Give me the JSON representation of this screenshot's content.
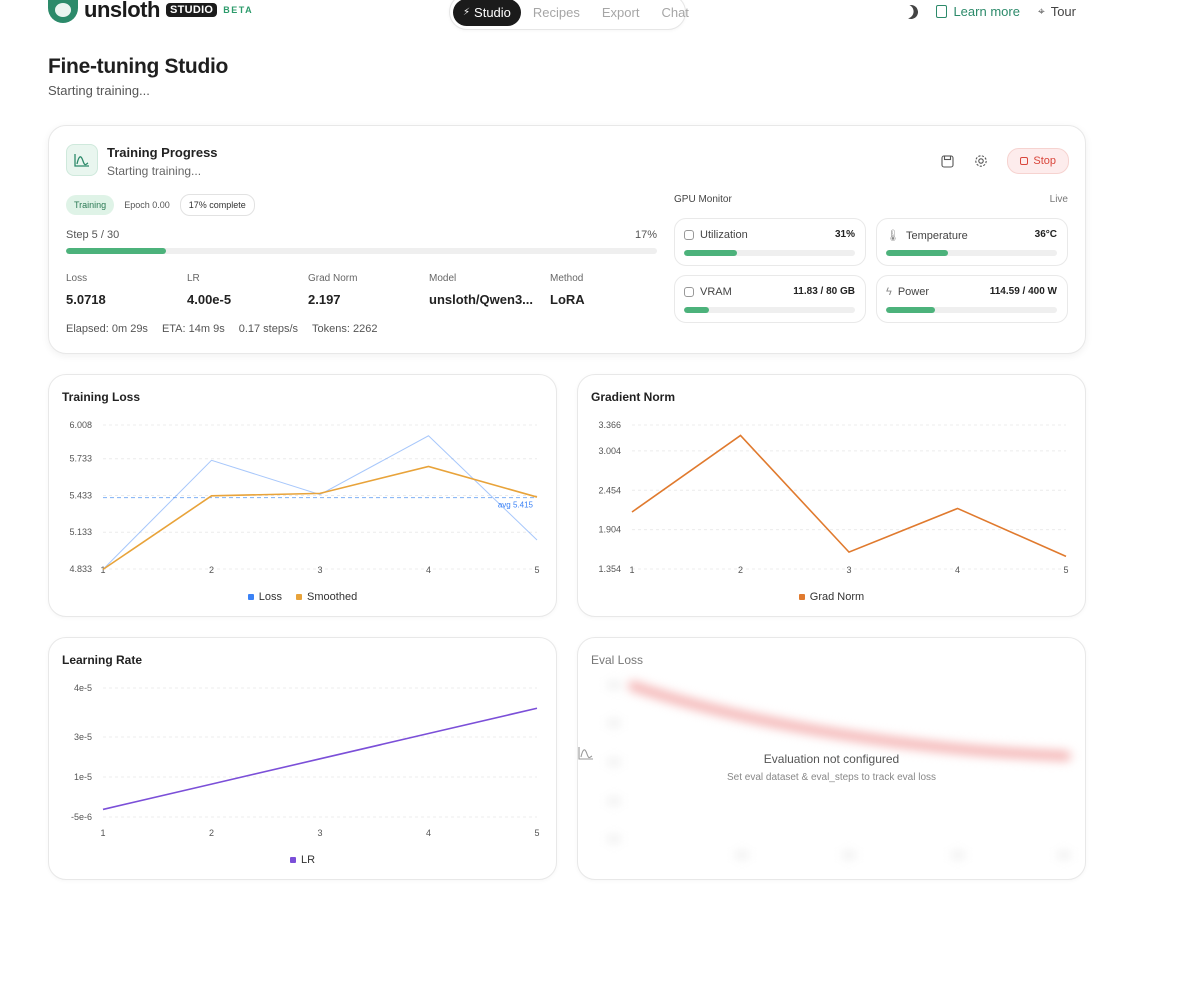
{
  "brand": {
    "name": "unsloth",
    "studio": "STUDIO",
    "beta": "BETA"
  },
  "nav": {
    "tabs": [
      {
        "label": "Studio"
      },
      {
        "label": "Recipes"
      },
      {
        "label": "Export"
      },
      {
        "label": "Chat"
      }
    ],
    "active": "Studio"
  },
  "topright": {
    "learn_more": "Learn more",
    "tour": "Tour"
  },
  "header": {
    "title": "Fine-tuning Studio",
    "subtitle": "Starting training..."
  },
  "progress": {
    "title": "Training Progress",
    "subtitle": "Starting training...",
    "stop_label": "Stop",
    "badges": {
      "status": "Training",
      "epoch": "Epoch 0.00",
      "complete": "17% complete"
    },
    "step_label": "Step 5 / 30",
    "percent_label": "17%",
    "percent": 17,
    "metrics": [
      {
        "label": "Loss",
        "value": "5.0718"
      },
      {
        "label": "LR",
        "value": "4.00e-5"
      },
      {
        "label": "Grad Norm",
        "value": "2.197"
      },
      {
        "label": "Model",
        "value": "unsloth/Qwen3..."
      },
      {
        "label": "Method",
        "value": "LoRA"
      }
    ],
    "stats": {
      "elapsed": "Elapsed: 0m 29s",
      "eta": "ETA: 14m 9s",
      "rate": "0.17 steps/s",
      "tokens": "Tokens: 2262"
    }
  },
  "gpu": {
    "title": "GPU Monitor",
    "live": "Live",
    "tiles": [
      {
        "label": "Utilization",
        "value": "31%",
        "fill": 0.31
      },
      {
        "label": "Temperature",
        "value": "36°C",
        "fill": 0.36
      },
      {
        "label": "VRAM",
        "value": "11.83 / 80 GB",
        "fill": 0.148
      },
      {
        "label": "Power",
        "value": "114.59 / 400 W",
        "fill": 0.286
      }
    ]
  },
  "colors": {
    "accent": "#4cb27b",
    "loss": "#3b82f6",
    "smoothed": "#e8a33a",
    "grad": "#e07a2e",
    "lr": "#7b4fd8",
    "eval": "#ef4444"
  },
  "chart_data": [
    {
      "type": "line",
      "title": "Training Loss",
      "x": [
        1,
        2,
        3,
        4,
        5
      ],
      "yticks": [
        "6.008",
        "5.733",
        "5.433",
        "5.133",
        "4.833"
      ],
      "ylim": [
        4.833,
        6.008
      ],
      "series": [
        {
          "name": "Loss",
          "values": [
            4.83,
            5.72,
            5.44,
            5.92,
            5.07
          ]
        },
        {
          "name": "Smoothed",
          "values": [
            4.83,
            5.43,
            5.45,
            5.67,
            5.42
          ]
        }
      ],
      "avg": 5.415,
      "avg_label": "avg 5.415"
    },
    {
      "type": "line",
      "title": "Gradient Norm",
      "x": [
        1,
        2,
        3,
        4,
        5
      ],
      "yticks": [
        "3.366",
        "3.004",
        "2.454",
        "1.904",
        "1.354"
      ],
      "ylim": [
        1.354,
        3.366
      ],
      "series": [
        {
          "name": "Grad Norm",
          "values": [
            2.15,
            3.22,
            1.59,
            2.2,
            1.53
          ]
        }
      ]
    },
    {
      "type": "line",
      "title": "Learning Rate",
      "x": [
        1,
        2,
        3,
        4,
        5
      ],
      "yticks": [
        "4e-5",
        "3e-5",
        "1e-5",
        "-5e-6"
      ],
      "series": [
        {
          "name": "LR",
          "values": [
            0.0,
            1e-05,
            2e-05,
            3e-05,
            4e-05
          ]
        }
      ]
    }
  ],
  "eval": {
    "title": "Eval Loss",
    "empty_title": "Evaluation not configured",
    "empty_sub": "Set eval dataset & eval_steps to track eval loss"
  }
}
